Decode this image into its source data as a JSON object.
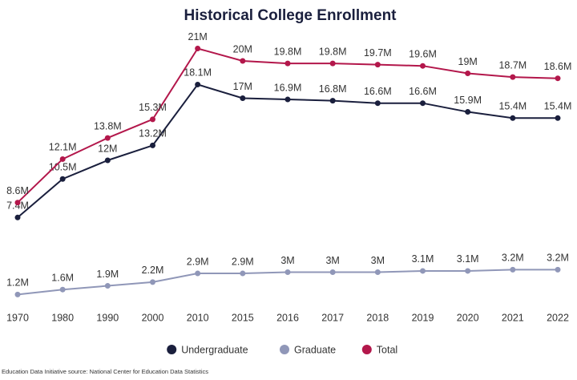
{
  "chart_data": {
    "type": "line",
    "title": "Historical College Enrollment",
    "source": "Education Data Initiative source: National Center for Education Data Statistics",
    "legend": "bottom",
    "categories": [
      "1970",
      "1980",
      "1990",
      "2000",
      "2010",
      "2015",
      "2016",
      "2017",
      "2018",
      "2019",
      "2020",
      "2021",
      "2022"
    ],
    "series": [
      {
        "name": "Undergraduate",
        "color": "#1a1f3d",
        "values": [
          7.4,
          10.5,
          12,
          13.2,
          18.1,
          17,
          16.9,
          16.8,
          16.6,
          16.6,
          15.9,
          15.4,
          15.4
        ],
        "value_labels": [
          "7.4M",
          "10.5M",
          "12M",
          "13.2M",
          "18.1M",
          "17M",
          "16.9M",
          "16.8M",
          "16.6M",
          "16.6M",
          "15.9M",
          "15.4M",
          "15.4M"
        ]
      },
      {
        "name": "Graduate",
        "color": "#9097b8",
        "values": [
          1.2,
          1.6,
          1.9,
          2.2,
          2.9,
          2.9,
          3,
          3,
          3,
          3.1,
          3.1,
          3.2,
          3.2
        ],
        "value_labels": [
          "1.2M",
          "1.6M",
          "1.9M",
          "2.2M",
          "2.9M",
          "2.9M",
          "3M",
          "3M",
          "3M",
          "3.1M",
          "3.1M",
          "3.2M",
          "3.2M"
        ]
      },
      {
        "name": "Total",
        "color": "#b3174b",
        "values": [
          8.6,
          12.1,
          13.8,
          15.3,
          21,
          20,
          19.8,
          19.8,
          19.7,
          19.6,
          19,
          18.7,
          18.6
        ],
        "value_labels": [
          "8.6M",
          "12.1M",
          "13.8M",
          "15.3M",
          "21M",
          "20M",
          "19.8M",
          "19.8M",
          "19.7M",
          "19.6M",
          "19M",
          "18.7M",
          "18.6M"
        ]
      }
    ]
  }
}
